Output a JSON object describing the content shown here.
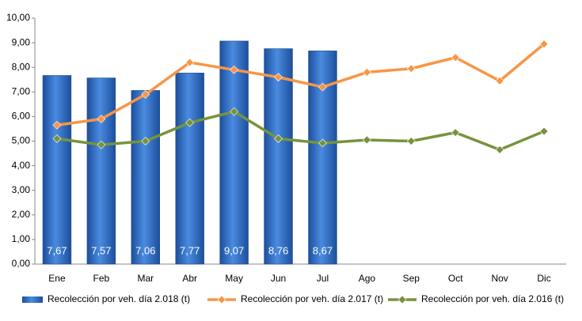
{
  "chart_data": {
    "type": "bar",
    "categories": [
      "Ene",
      "Feb",
      "Mar",
      "Abr",
      "May",
      "Jun",
      "Jul",
      "Ago",
      "Sep",
      "Oct",
      "Nov",
      "Dic"
    ],
    "series": [
      {
        "name": "Recolección por veh. día 2.018 (t)",
        "type": "bar",
        "color": "#2e6fc4",
        "values": [
          7.67,
          7.57,
          7.06,
          7.77,
          9.07,
          8.76,
          8.67,
          null,
          null,
          null,
          null,
          null
        ],
        "value_labels": [
          "7,67",
          "7,57",
          "7,06",
          "7,77",
          "9,07",
          "8,76",
          "8,67",
          null,
          null,
          null,
          null,
          null
        ]
      },
      {
        "name": "Recolección por veh. día 2.017 (t)",
        "type": "line",
        "color": "#f79646",
        "values": [
          5.65,
          5.9,
          6.9,
          8.2,
          7.9,
          7.6,
          7.2,
          7.8,
          7.95,
          8.4,
          7.45,
          8.95
        ]
      },
      {
        "name": "Recolección por veh. día 2.016 (t)",
        "type": "line",
        "color": "#77933c",
        "values": [
          5.1,
          4.85,
          5.0,
          5.75,
          6.2,
          5.1,
          4.92,
          5.05,
          5.0,
          5.35,
          4.65,
          5.4
        ]
      }
    ],
    "ylim": [
      0,
      10
    ],
    "yticks": [
      {
        "value": 0,
        "label": "0,00"
      },
      {
        "value": 1,
        "label": "1,00"
      },
      {
        "value": 2,
        "label": "2,00"
      },
      {
        "value": 3,
        "label": "3,00"
      },
      {
        "value": 4,
        "label": "4,00"
      },
      {
        "value": 5,
        "label": "5,00"
      },
      {
        "value": 6,
        "label": "6,00"
      },
      {
        "value": 7,
        "label": "7,00"
      },
      {
        "value": 8,
        "label": "8,00"
      },
      {
        "value": 9,
        "label": "9,00"
      },
      {
        "value": 10,
        "label": "10,00"
      }
    ],
    "grid": false,
    "legend": "bottom"
  }
}
